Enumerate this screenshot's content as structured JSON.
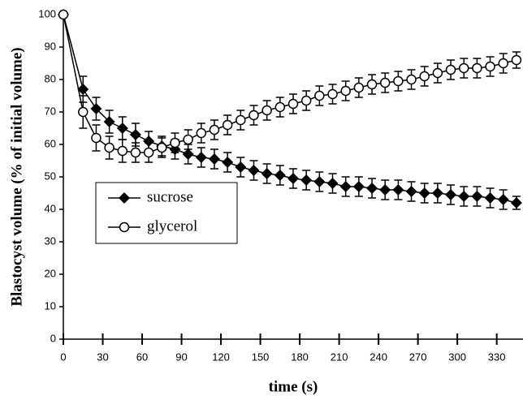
{
  "chart_data": {
    "type": "line",
    "xlabel": "time (s)",
    "ylabel": "Blastocyst volume (% of initial volume)",
    "x": [
      0,
      15,
      25,
      35,
      45,
      55,
      65,
      75,
      85,
      95,
      105,
      115,
      125,
      135,
      145,
      155,
      165,
      175,
      185,
      195,
      205,
      215,
      225,
      235,
      245,
      255,
      265,
      275,
      285,
      295,
      305,
      315,
      325,
      335,
      345
    ],
    "series": [
      {
        "name": "sucrose",
        "color": "#000000",
        "marker": "diamond",
        "values": [
          100,
          77,
          71,
          67,
          65,
          63,
          61,
          59.5,
          58.5,
          57,
          56,
          55.5,
          54.5,
          53,
          52,
          51,
          50.5,
          49.5,
          49,
          48.5,
          48,
          47,
          47,
          46.5,
          46,
          46,
          45.5,
          45,
          45,
          44.5,
          44,
          44,
          43.5,
          43,
          42
        ],
        "errors": [
          0,
          4,
          3.5,
          3.5,
          3.5,
          3.5,
          3,
          3,
          3,
          3,
          3,
          3,
          3,
          3,
          3,
          3,
          3,
          3,
          3,
          3,
          3,
          3,
          3,
          3,
          3,
          3,
          3,
          3,
          3,
          3,
          3,
          3,
          3,
          3,
          2
        ]
      },
      {
        "name": "glycerol",
        "color": "#000000",
        "marker": "circle",
        "values": [
          100,
          70,
          62,
          59,
          58,
          57.5,
          57.5,
          59,
          60.5,
          61.5,
          63.5,
          64.5,
          66,
          67.5,
          69,
          70.5,
          71.5,
          72.5,
          73.5,
          75,
          75.5,
          76.5,
          77.5,
          78.5,
          79,
          79.5,
          80,
          81,
          82,
          83,
          83.5,
          83.5,
          84,
          85,
          86
        ],
        "errors": [
          0,
          5,
          4,
          3.5,
          3.5,
          3,
          3,
          3,
          3,
          3,
          3,
          3,
          3,
          3,
          3,
          3,
          3,
          3,
          3,
          3,
          3,
          3,
          3,
          3,
          3,
          3,
          3,
          3,
          3,
          3,
          3,
          3,
          3,
          3,
          2.5
        ]
      }
    ],
    "xlim": [
      0,
      350
    ],
    "xticks": [
      0,
      30,
      60,
      90,
      120,
      150,
      180,
      210,
      240,
      270,
      300,
      330
    ],
    "ylim": [
      0,
      100
    ],
    "yticks": [
      0,
      10,
      20,
      30,
      40,
      50,
      60,
      70,
      80,
      90,
      100
    ],
    "grid": false,
    "legend": "center left"
  }
}
